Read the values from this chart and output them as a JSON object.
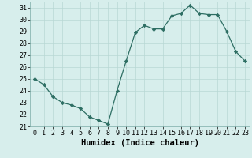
{
  "x": [
    0,
    1,
    2,
    3,
    4,
    5,
    6,
    7,
    8,
    9,
    10,
    11,
    12,
    13,
    14,
    15,
    16,
    17,
    18,
    19,
    20,
    21,
    22,
    23
  ],
  "y": [
    25.0,
    24.5,
    23.5,
    23.0,
    22.8,
    22.5,
    21.8,
    21.5,
    21.2,
    24.0,
    26.5,
    28.9,
    29.5,
    29.2,
    29.2,
    30.3,
    30.5,
    31.2,
    30.5,
    30.4,
    30.4,
    29.0,
    27.3,
    26.5
  ],
  "line_color": "#2d6e63",
  "marker": "D",
  "marker_size": 2.2,
  "bg_color": "#d7eeec",
  "grid_color": "#b8d8d5",
  "xlabel": "Humidex (Indice chaleur)",
  "xlim": [
    -0.5,
    23.5
  ],
  "ylim": [
    21,
    31.5
  ],
  "yticks": [
    21,
    22,
    23,
    24,
    25,
    26,
    27,
    28,
    29,
    30,
    31
  ],
  "xticks": [
    0,
    1,
    2,
    3,
    4,
    5,
    6,
    7,
    8,
    9,
    10,
    11,
    12,
    13,
    14,
    15,
    16,
    17,
    18,
    19,
    20,
    21,
    22,
    23
  ],
  "tick_fontsize": 6,
  "xlabel_fontsize": 7.5,
  "linewidth": 0.9
}
